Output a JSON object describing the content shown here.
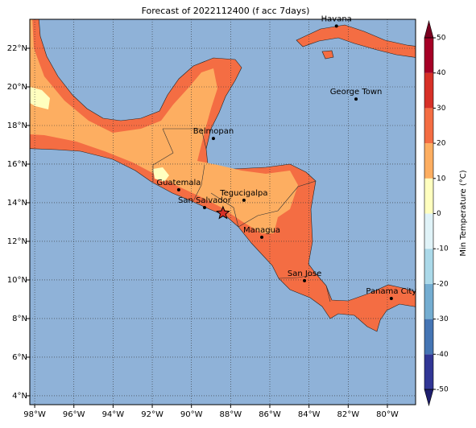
{
  "title": "Forecast of 2022112400 (f acc 7days)",
  "map": {
    "xlim": [
      -98.25,
      -78.56
    ],
    "ylim": [
      3.54,
      23.5
    ],
    "ocean_color": "#8fb2d8",
    "land_color": "#f46d43",
    "inland_color": "#fdae61",
    "cool_color": "#ffffbf",
    "xticks": [
      {
        "value": -98,
        "label": "98°W"
      },
      {
        "value": -96,
        "label": "96°W"
      },
      {
        "value": -94,
        "label": "94°W"
      },
      {
        "value": -92,
        "label": "92°W"
      },
      {
        "value": -90,
        "label": "90°W"
      },
      {
        "value": -88,
        "label": "88°W"
      },
      {
        "value": -86,
        "label": "86°W"
      },
      {
        "value": -84,
        "label": "84°W"
      },
      {
        "value": -82,
        "label": "82°W"
      },
      {
        "value": -80,
        "label": "80°W"
      }
    ],
    "yticks": [
      {
        "value": 4,
        "label": "4°N"
      },
      {
        "value": 6,
        "label": "6°N"
      },
      {
        "value": 8,
        "label": "8°N"
      },
      {
        "value": 10,
        "label": "10°N"
      },
      {
        "value": 12,
        "label": "12°N"
      },
      {
        "value": 14,
        "label": "14°N"
      },
      {
        "value": 16,
        "label": "16°N"
      },
      {
        "value": 18,
        "label": "18°N"
      },
      {
        "value": 20,
        "label": "20°N"
      },
      {
        "value": 22,
        "label": "22°N"
      }
    ]
  },
  "cities": [
    {
      "name": "Havana",
      "lon": -82.6,
      "lat": 23.15
    },
    {
      "name": "George Town",
      "lon": -81.6,
      "lat": 19.37
    },
    {
      "name": "Belmopan",
      "lon": -88.88,
      "lat": 17.33
    },
    {
      "name": "Guatemala",
      "lon": -90.65,
      "lat": 14.67
    },
    {
      "name": "San Salvador",
      "lon": -89.33,
      "lat": 13.75
    },
    {
      "name": "Tegucigalpa",
      "lon": -87.32,
      "lat": 14.13
    },
    {
      "name": "Managua",
      "lon": -86.41,
      "lat": 12.21
    },
    {
      "name": "San Jose",
      "lon": -84.23,
      "lat": 9.96
    },
    {
      "name": "Panama City",
      "lon": -79.8,
      "lat": 9.04
    }
  ],
  "star": {
    "lon": -88.39,
    "lat": 13.46
  },
  "colorbar": {
    "label": "Min Temperature (°C)",
    "lim": [
      -50,
      50
    ],
    "ticks": [
      -50,
      -40,
      -30,
      -20,
      -10,
      0,
      10,
      20,
      30,
      40,
      50
    ],
    "bounds": [
      -50,
      -40,
      -30,
      -20,
      -10,
      0,
      10,
      20,
      30,
      40,
      50
    ],
    "colors": [
      "#313695",
      "#4575b4",
      "#74add1",
      "#abd9e9",
      "#e0f3f8",
      "#ffffbf",
      "#fdae61",
      "#f46d43",
      "#d73027",
      "#a50026"
    ],
    "under_color": "#1f1f6e",
    "over_color": "#7a0020"
  }
}
